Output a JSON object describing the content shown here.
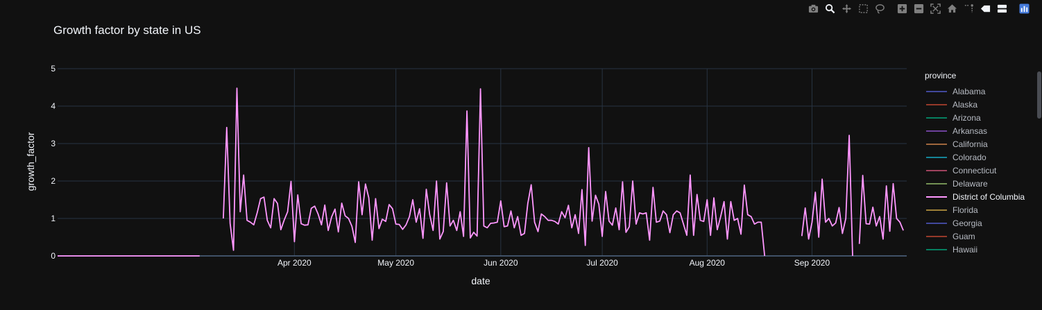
{
  "chart_data": {
    "type": "line",
    "title": "Growth factor by state in US",
    "xlabel": "date",
    "ylabel": "growth_factor",
    "ylim": [
      0,
      5
    ],
    "yticks": [
      "0",
      "1",
      "2",
      "3",
      "4",
      "5"
    ],
    "xticks": [
      {
        "date": "2020-04-01",
        "label": "Apr 2020"
      },
      {
        "date": "2020-05-01",
        "label": "May 2020"
      },
      {
        "date": "2020-06-01",
        "label": "Jun 2020"
      },
      {
        "date": "2020-07-01",
        "label": "Jul 2020"
      },
      {
        "date": "2020-08-01",
        "label": "Aug 2020"
      },
      {
        "date": "2020-09-01",
        "label": "Sep 2020"
      }
    ],
    "x_start": "2020-01-22",
    "x_end": "2020-09-29",
    "grid": true,
    "legend_title": "province",
    "legend_position": "right",
    "series": [
      {
        "name": "Alabama",
        "color": "#636efa"
      },
      {
        "name": "Alaska",
        "color": "#EF553B"
      },
      {
        "name": "Arizona",
        "color": "#00cc96"
      },
      {
        "name": "Arkansas",
        "color": "#ab63fa"
      },
      {
        "name": "California",
        "color": "#FFA15A"
      },
      {
        "name": "Colorado",
        "color": "#19d3f3"
      },
      {
        "name": "Connecticut",
        "color": "#FF6692"
      },
      {
        "name": "Delaware",
        "color": "#B6E880"
      },
      {
        "name": "District of Columbia",
        "color": "#FF97FF",
        "highlighted": true,
        "segments": [
          {
            "start": "2020-01-22",
            "values": [
              0,
              0,
              0,
              0,
              0,
              0,
              0,
              0,
              0,
              0,
              0,
              0,
              0,
              0,
              0,
              0,
              0,
              0,
              0,
              0,
              0,
              0,
              0,
              0,
              0,
              0,
              0,
              0,
              0,
              0,
              0,
              0,
              0,
              0,
              0,
              0,
              0,
              0,
              0,
              0,
              0,
              0,
              0
            ]
          },
          {
            "start": "2020-03-11",
            "values": [
              1.0,
              3.43,
              0.87,
              0.15,
              4.48,
              1.18,
              2.16,
              0.95,
              0.9,
              0.83,
              1.15,
              1.53,
              1.57,
              0.95,
              0.75,
              1.53,
              1.4,
              0.7,
              0.96,
              1.18,
              1.99,
              0.38,
              1.63,
              0.86,
              0.82,
              0.83,
              1.27,
              1.33,
              1.12,
              0.83,
              1.36,
              0.68,
              1.04,
              1.25,
              0.64,
              1.41,
              1.07,
              1.0,
              0.79,
              0.36,
              1.98,
              1.1,
              1.92,
              1.55,
              0.42,
              1.53,
              0.73,
              0.98,
              0.92,
              1.37,
              1.26,
              0.85,
              0.84,
              0.71,
              0.83,
              1.05,
              1.5,
              0.9,
              1.26,
              0.47,
              1.78,
              1.1,
              0.68,
              2.0,
              0.45,
              0.65,
              1.95,
              0.8,
              0.95,
              0.68,
              1.18,
              0.52,
              3.87,
              0.48,
              0.63,
              0.53,
              4.46,
              0.8,
              0.75,
              0.87,
              0.88,
              0.9,
              1.47,
              0.78,
              0.8,
              1.2,
              0.75,
              1.05,
              0.55,
              0.6,
              1.4,
              1.9,
              0.9,
              0.65,
              1.12,
              1.05,
              0.95,
              0.95,
              0.92,
              0.85,
              1.18,
              1.02,
              1.35,
              0.75,
              1.1,
              0.6,
              1.77,
              0.28,
              2.89,
              0.93,
              1.62,
              1.38,
              0.52,
              1.72,
              0.93,
              0.82,
              1.28,
              0.7,
              1.98,
              0.63,
              0.78,
              2.0,
              0.85,
              1.15,
              1.12,
              1.15,
              0.42,
              1.83,
              0.9,
              0.93,
              1.2,
              1.1,
              0.62,
              1.1,
              1.2,
              1.15,
              0.85,
              0.55,
              2.16,
              0.55,
              1.64,
              0.95,
              0.92,
              1.5,
              0.55,
              1.55,
              0.7,
              1.05,
              1.45,
              0.45,
              1.45,
              0.95,
              1.0,
              0.58,
              1.89,
              1.1,
              1.05,
              0.85,
              0.9,
              0.9,
              0.0
            ]
          },
          {
            "start": "2020-08-29",
            "values": [
              0.53,
              1.28,
              0.45,
              0.9,
              1.7,
              0.5,
              2.05,
              0.9,
              1.0,
              0.8,
              0.88,
              1.29,
              0.6,
              1.0,
              3.22,
              0.0
            ]
          },
          {
            "start": "2020-09-15",
            "values": [
              0.32,
              2.15,
              0.86,
              0.85,
              1.3,
              0.8,
              1.05,
              0.45,
              1.87,
              0.66,
              1.93,
              1.0,
              0.9,
              0.68
            ]
          }
        ]
      },
      {
        "name": "Florida",
        "color": "#FECB52"
      },
      {
        "name": "Georgia",
        "color": "#636efa"
      },
      {
        "name": "Guam",
        "color": "#EF553B"
      },
      {
        "name": "Hawaii",
        "color": "#00cc96"
      }
    ]
  },
  "modebar": [
    "camera-icon",
    "zoom-icon",
    "pan-icon",
    "box-select-icon",
    "lasso-icon",
    "zoom-in-icon",
    "zoom-out-icon",
    "autoscale-icon",
    "home-icon",
    "spike-lines-icon",
    "hover-closest-icon",
    "hover-compare-icon",
    "plotly-logo-icon"
  ],
  "colors": {
    "background": "#111111",
    "grid": "#283442",
    "text": "#f2f5fa"
  }
}
